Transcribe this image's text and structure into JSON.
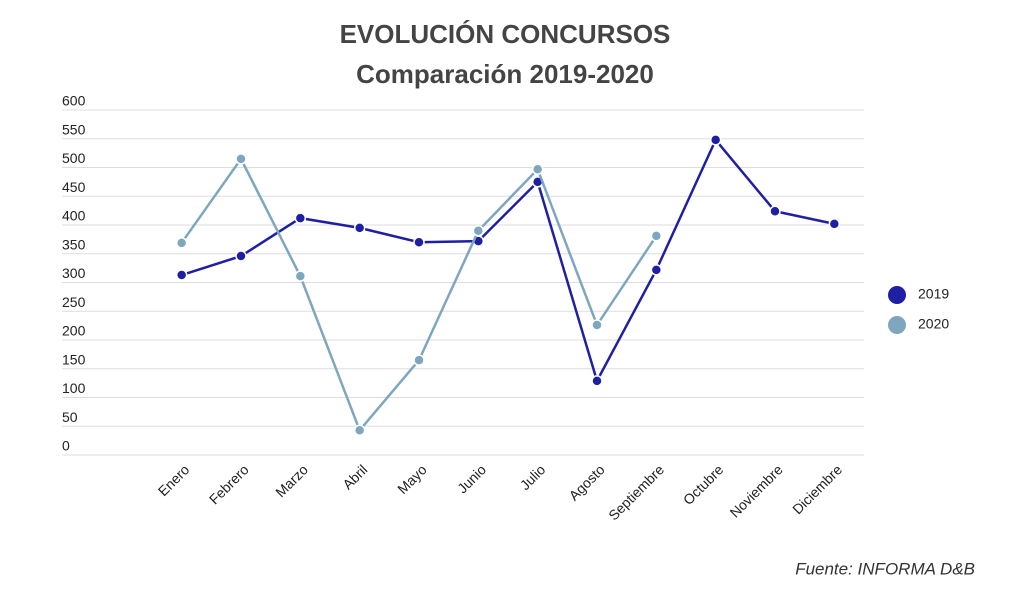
{
  "chart_data": {
    "type": "line",
    "title": "EVOLUCIÓN CONCURSOS",
    "subtitle": "Comparación 2019-2020",
    "categories": [
      "Enero",
      "Febrero",
      "Marzo",
      "Abril",
      "Mayo",
      "Junio",
      "Julio",
      "Agosto",
      "Septiembre",
      "Octubre",
      "Noviembre",
      "Diciembre"
    ],
    "series": [
      {
        "name": "2019",
        "color": "#1f1fa3",
        "values": [
          313,
          346,
          412,
          395,
          370,
          372,
          475,
          129,
          322,
          548,
          424,
          402
        ]
      },
      {
        "name": "2020",
        "color": "#7ea7bf",
        "values": [
          369,
          515,
          311,
          43,
          165,
          390,
          497,
          226,
          381,
          null,
          null,
          null
        ]
      }
    ],
    "ylim": [
      0,
      600
    ],
    "yticks": [
      0,
      50,
      100,
      150,
      200,
      250,
      300,
      350,
      400,
      450,
      500,
      550,
      600
    ],
    "grid": true,
    "legend": "right",
    "source": "Fuente: INFORMA D&B"
  }
}
